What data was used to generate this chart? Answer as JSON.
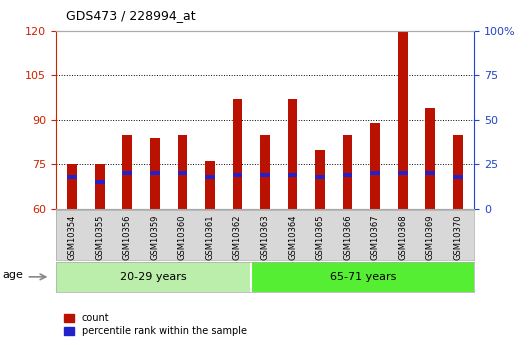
{
  "title": "GDS473 / 228994_at",
  "samples": [
    "GSM10354",
    "GSM10355",
    "GSM10356",
    "GSM10359",
    "GSM10360",
    "GSM10361",
    "GSM10362",
    "GSM10363",
    "GSM10364",
    "GSM10365",
    "GSM10366",
    "GSM10367",
    "GSM10368",
    "GSM10369",
    "GSM10370"
  ],
  "count_values": [
    75,
    75,
    85,
    84,
    85,
    76,
    97,
    85,
    97,
    80,
    85,
    89,
    120,
    94,
    85
  ],
  "percentile_values": [
    18,
    15,
    20,
    20,
    20,
    18,
    19,
    19,
    19,
    18,
    19,
    20,
    20,
    20,
    18
  ],
  "group1_label": "20-29 years",
  "group2_label": "65-71 years",
  "group1_count": 7,
  "group2_count": 8,
  "age_label": "age",
  "ylim_left": [
    60,
    120
  ],
  "ylim_right": [
    0,
    100
  ],
  "yticks_left": [
    60,
    75,
    90,
    105,
    120
  ],
  "yticks_right": [
    0,
    25,
    50,
    75,
    100
  ],
  "bar_color": "#BB1100",
  "percentile_color": "#2222CC",
  "bar_width": 0.35,
  "group1_bg": "#BBEEAA",
  "group2_bg": "#55EE33",
  "plot_bg": "#FFFFFF",
  "sample_bg": "#D8D8D8",
  "legend_count_label": "count",
  "legend_pct_label": "percentile rank within the sample",
  "grid_color": "#000000",
  "ylabel_left_color": "#CC2200",
  "ylabel_right_color": "#2244CC",
  "title_fontsize": 9,
  "tick_fontsize": 8,
  "sample_fontsize": 6,
  "age_fontsize": 8
}
